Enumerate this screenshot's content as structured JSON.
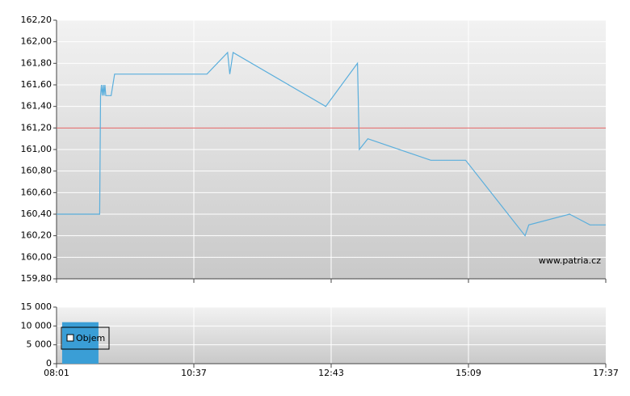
{
  "chart_data": [
    {
      "type": "line",
      "xlim": [
        "08:01",
        "17:37"
      ],
      "xticks": [
        "08:01",
        "10:37",
        "12:43",
        "15:09",
        "17:37"
      ],
      "ylim": [
        159.8,
        162.2
      ],
      "yticks": [
        {
          "value": 159.8,
          "label": "159,80"
        },
        {
          "value": 160.0,
          "label": "160,00"
        },
        {
          "value": 160.2,
          "label": "160,20"
        },
        {
          "value": 160.4,
          "label": "160,40"
        },
        {
          "value": 160.6,
          "label": "160,60"
        },
        {
          "value": 160.8,
          "label": "160,80"
        },
        {
          "value": 161.0,
          "label": "161,00"
        },
        {
          "value": 161.2,
          "label": "161,20"
        },
        {
          "value": 161.4,
          "label": "161,40"
        },
        {
          "value": 161.6,
          "label": "161,60"
        },
        {
          "value": 161.8,
          "label": "161,80"
        },
        {
          "value": 162.0,
          "label": "162,00"
        },
        {
          "value": 162.2,
          "label": "162,20"
        }
      ],
      "grid": true,
      "reference_line": {
        "value": 161.2,
        "color": "#e06060"
      },
      "watermark": "www.patria.cz",
      "series": [
        {
          "color": "#5aaedc",
          "x": [
            "08:01",
            "08:50",
            "08:51",
            "08:52",
            "08:53",
            "08:54",
            "08:55",
            "08:56",
            "08:57",
            "08:59",
            "09:03",
            "09:07",
            "10:49",
            "11:08",
            "11:10",
            "11:13",
            "12:38",
            "13:11",
            "13:13",
            "13:22",
            "14:29",
            "15:06",
            "16:10",
            "16:14",
            "16:58",
            "17:20",
            "17:37"
          ],
          "values": [
            160.4,
            160.4,
            161.5,
            161.6,
            161.5,
            161.6,
            161.5,
            161.6,
            161.5,
            161.5,
            161.5,
            161.7,
            161.7,
            161.9,
            161.7,
            161.9,
            161.4,
            161.8,
            161.0,
            161.1,
            160.9,
            160.9,
            160.2,
            160.3,
            160.4,
            160.3,
            160.3
          ]
        }
      ]
    },
    {
      "type": "bar",
      "ylim": [
        0,
        15000
      ],
      "yticks": [
        0,
        {
          "value": 5000,
          "label": "5 000"
        },
        {
          "value": 10000,
          "label": "10 000"
        },
        {
          "value": 15000,
          "label": "15 000"
        }
      ],
      "grid": true,
      "legend": "top-left",
      "series": [
        {
          "name": "Objem",
          "color": "#3a9ed6",
          "x": [
            "08:28"
          ],
          "values": [
            11000
          ]
        }
      ]
    }
  ]
}
